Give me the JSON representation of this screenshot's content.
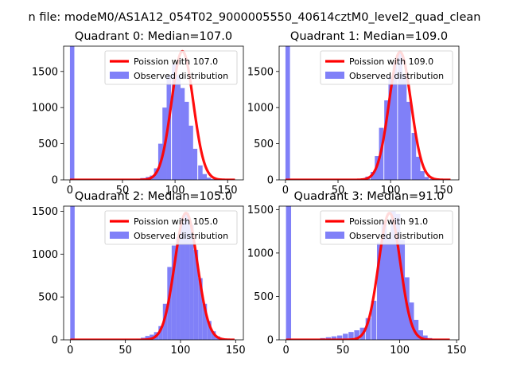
{
  "figure": {
    "suptitle": "n file: modeM0/AS1A12_054T02_9000005550_40614cztM0_level2_quad_clean"
  },
  "colors": {
    "hist": "#8080f8",
    "fit": "#ff0000",
    "spike": "#8080f8"
  },
  "chart_data": [
    {
      "type": "bar",
      "title": "Quadrant 0: Median=107.0",
      "median": 107.0,
      "xlim": [
        -6,
        165
      ],
      "ylim": [
        0,
        1850
      ],
      "xticks": [
        0,
        50,
        100,
        150
      ],
      "yticks": [
        0,
        500,
        1000,
        1500
      ],
      "legend": [
        "Poission with 107.0",
        "Observed distribution"
      ],
      "legend_position": "top-right",
      "hist_x": [
        0,
        63,
        67,
        72,
        76,
        80,
        84,
        88,
        92,
        97,
        101,
        105,
        109,
        113,
        117,
        122,
        126,
        130,
        134,
        138,
        143
      ],
      "hist_y": [
        1850,
        10,
        25,
        40,
        60,
        160,
        500,
        1000,
        1450,
        1600,
        1450,
        1270,
        1080,
        750,
        430,
        200,
        80,
        30,
        10,
        5,
        2
      ],
      "hist_bin_width": 4.2,
      "fit_lambda": 107.0,
      "fit_peak": 1780
    },
    {
      "type": "bar",
      "title": "Quadrant 1: Median=109.0",
      "median": 109.0,
      "xlim": [
        -6,
        165
      ],
      "ylim": [
        0,
        1850
      ],
      "xticks": [
        0,
        50,
        100,
        150
      ],
      "yticks": [
        0,
        500,
        1000,
        1500
      ],
      "legend": [
        "Poission with 109.0",
        "Observed distribution"
      ],
      "legend_position": "top-right",
      "hist_x": [
        0,
        68,
        72,
        76,
        81,
        85,
        89,
        94,
        98,
        102,
        107,
        111,
        115,
        120,
        124,
        128,
        132,
        137,
        141
      ],
      "hist_y": [
        1850,
        8,
        20,
        45,
        110,
        330,
        720,
        1100,
        1430,
        1620,
        1750,
        1450,
        1080,
        650,
        320,
        120,
        40,
        12,
        4
      ],
      "hist_bin_width": 4.3,
      "fit_lambda": 109.0,
      "fit_peak": 1770
    },
    {
      "type": "bar",
      "title": "Quadrant 2: Median=105.0",
      "median": 105.0,
      "xlim": [
        -6,
        157
      ],
      "ylim": [
        0,
        1560
      ],
      "xticks": [
        0,
        50,
        100,
        150
      ],
      "yticks": [
        0,
        500,
        1000,
        1500
      ],
      "legend": [
        "Poission with 105.0",
        "Observed distribution"
      ],
      "legend_position": "top-right",
      "hist_x": [
        0,
        60,
        64,
        68,
        72,
        76,
        80,
        84,
        88,
        92,
        96,
        100,
        104,
        108,
        112,
        116,
        120,
        124,
        128,
        132,
        136,
        140
      ],
      "hist_y": [
        1560,
        10,
        25,
        45,
        60,
        90,
        160,
        420,
        850,
        1100,
        1200,
        1420,
        1480,
        1340,
        1050,
        720,
        420,
        220,
        100,
        40,
        15,
        5
      ],
      "hist_bin_width": 4.0,
      "fit_lambda": 105.0,
      "fit_peak": 1480
    },
    {
      "type": "bar",
      "title": "Quadrant 3: Median=91.0",
      "median": 91.0,
      "xlim": [
        -6,
        152
      ],
      "ylim": [
        0,
        1540
      ],
      "xticks": [
        0,
        50,
        100,
        150
      ],
      "yticks": [
        0,
        500,
        1000,
        1500
      ],
      "legend": [
        "Poission with 91.0",
        "Observed distribution"
      ],
      "legend_position": "top-right",
      "hist_x": [
        0,
        30,
        35,
        40,
        45,
        50,
        55,
        60,
        65,
        70,
        75,
        80,
        84,
        88,
        92,
        96,
        100,
        104,
        108,
        112,
        116,
        120,
        124,
        128,
        132
      ],
      "hist_y": [
        1540,
        20,
        30,
        40,
        50,
        70,
        90,
        110,
        140,
        250,
        450,
        1120,
        1350,
        1170,
        1480,
        1450,
        1150,
        720,
        430,
        230,
        110,
        50,
        20,
        8,
        3
      ],
      "hist_bin_width": 4.5,
      "fit_lambda": 91.0,
      "fit_peak": 1460
    }
  ]
}
